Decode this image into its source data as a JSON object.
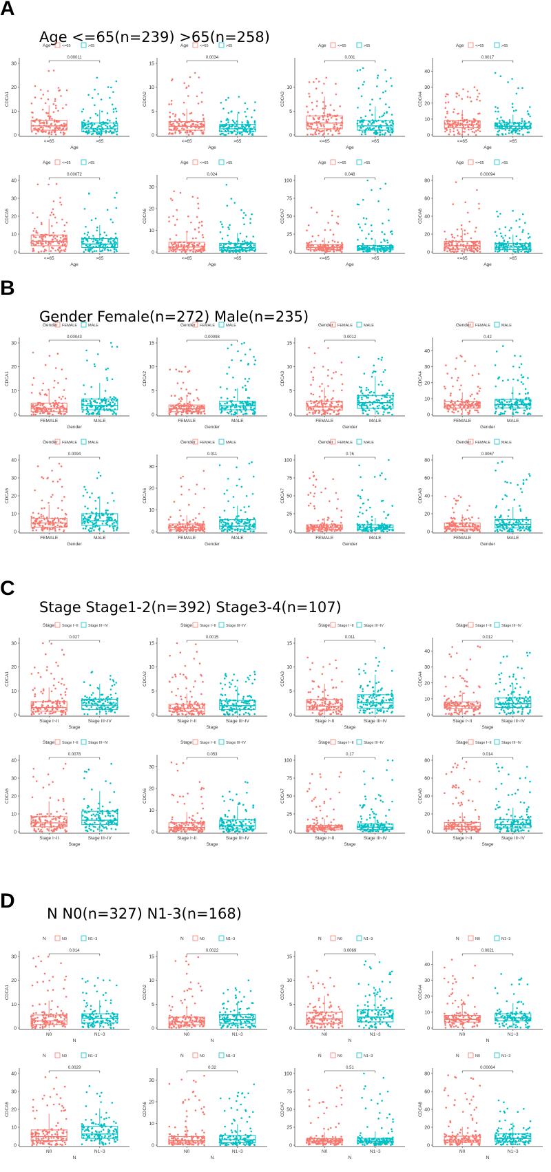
{
  "panels": [
    {
      "letter": "A",
      "title": "Age <=65(n=239)   >65(n=258)",
      "legend_title": "Age",
      "groups": [
        "<=65",
        ">65"
      ],
      "xlabel": "Age"
    },
    {
      "letter": "B",
      "title": "Gender Female(n=272)   Male(n=235)",
      "legend_title": "Gender",
      "groups": [
        "FEMALE",
        "MALE"
      ],
      "xlabel": "Gender"
    },
    {
      "letter": "C",
      "title": "Stage Stage1-2(n=392)   Stage3-4(n=107)",
      "legend_title": "Stage",
      "groups": [
        "Stage I~II",
        "Stage III~IV"
      ],
      "xlabel": "Stage"
    },
    {
      "letter": "D",
      "title": "N N0(n=327)   N1-3(n=168)",
      "legend_title": "N",
      "groups": [
        "N0",
        "N1~3"
      ],
      "xlabel": "N"
    }
  ],
  "colors": {
    "group1": "#F8766D",
    "group2": "#00BFC4"
  },
  "chart_data": [
    {
      "type": "boxplot",
      "panel": "A",
      "gene": "CDCA1",
      "p": "0.00011",
      "ylim": [
        0,
        30
      ],
      "yticks": [
        0,
        10,
        20,
        30
      ],
      "medians": [
        3.8,
        2.6
      ],
      "q1": [
        2.0,
        1.3
      ],
      "q3": [
        6.2,
        5.0
      ],
      "max": [
        27,
        24
      ]
    },
    {
      "type": "boxplot",
      "panel": "A",
      "gene": "CDCA2",
      "p": "0.0034",
      "ylim": [
        0,
        15
      ],
      "yticks": [
        0,
        5,
        10,
        15
      ],
      "medians": [
        1.8,
        1.3
      ],
      "q1": [
        1.0,
        0.7
      ],
      "q3": [
        2.8,
        2.2
      ],
      "max": [
        13,
        8
      ]
    },
    {
      "type": "boxplot",
      "panel": "A",
      "gene": "CDCA3",
      "p": "0.001",
      "ylim": [
        0,
        15
      ],
      "yticks": [
        0,
        5,
        10
      ],
      "medians": [
        2.5,
        1.9
      ],
      "q1": [
        1.3,
        1.0
      ],
      "q3": [
        4.0,
        3.0
      ],
      "max": [
        12,
        14
      ]
    },
    {
      "type": "boxplot",
      "panel": "A",
      "gene": "CDCA4",
      "p": "0.0017",
      "ylim": [
        0,
        45
      ],
      "yticks": [
        0,
        10,
        20,
        30,
        40
      ],
      "medians": [
        6.5,
        5.5
      ],
      "q1": [
        4.5,
        4.0
      ],
      "q3": [
        9.0,
        7.5
      ],
      "max": [
        30,
        39
      ]
    },
    {
      "type": "boxplot",
      "panel": "A",
      "gene": "CDCA5",
      "p": "0.00072",
      "ylim": [
        0,
        40
      ],
      "yticks": [
        0,
        10,
        20,
        30,
        40
      ],
      "medians": [
        6.0,
        4.5
      ],
      "q1": [
        3.5,
        2.5
      ],
      "q3": [
        9.5,
        7.5
      ],
      "max": [
        38,
        33
      ]
    },
    {
      "type": "boxplot",
      "panel": "A",
      "gene": "CDCA6",
      "p": "0.024",
      "ylim": [
        0,
        33
      ],
      "yticks": [
        0,
        10,
        20,
        30
      ],
      "medians": [
        2.3,
        2.0
      ],
      "q1": [
        1.0,
        0.8
      ],
      "q3": [
        4.5,
        4.0
      ],
      "max": [
        28,
        31
      ]
    },
    {
      "type": "boxplot",
      "panel": "A",
      "gene": "CDCA7",
      "p": "0.048",
      "ylim": [
        0,
        100
      ],
      "yticks": [
        0,
        25,
        50,
        75,
        100
      ],
      "medians": [
        6.5,
        5.0
      ],
      "q1": [
        3.5,
        3.0
      ],
      "q3": [
        10.0,
        9.0
      ],
      "max": [
        62,
        100
      ]
    },
    {
      "type": "boxplot",
      "panel": "A",
      "gene": "CDCA8",
      "p": "0.00094",
      "ylim": [
        0,
        80
      ],
      "yticks": [
        0,
        20,
        40,
        60,
        80
      ],
      "medians": [
        7.0,
        5.5
      ],
      "q1": [
        3.5,
        2.8
      ],
      "q3": [
        12.0,
        9.5
      ],
      "max": [
        78,
        46
      ]
    },
    {
      "type": "boxplot",
      "panel": "B",
      "gene": "CDCA1",
      "p": "0.00043",
      "ylim": [
        0,
        30
      ],
      "yticks": [
        0,
        10,
        20,
        30
      ],
      "medians": [
        2.6,
        3.8
      ],
      "q1": [
        1.2,
        2.0
      ],
      "q3": [
        4.8,
        6.5
      ],
      "max": [
        26,
        30
      ]
    },
    {
      "type": "boxplot",
      "panel": "B",
      "gene": "CDCA2",
      "p": "0.00098",
      "ylim": [
        0,
        15
      ],
      "yticks": [
        0,
        5,
        10,
        15
      ],
      "medians": [
        1.2,
        1.8
      ],
      "q1": [
        0.6,
        1.0
      ],
      "q3": [
        2.0,
        2.8
      ],
      "max": [
        10,
        15
      ]
    },
    {
      "type": "boxplot",
      "panel": "B",
      "gene": "CDCA3",
      "p": "0.0012",
      "ylim": [
        0,
        15
      ],
      "yticks": [
        0,
        5,
        10,
        15
      ],
      "medians": [
        1.6,
        2.5
      ],
      "q1": [
        0.9,
        1.3
      ],
      "q3": [
        2.8,
        4.0
      ],
      "max": [
        14,
        12
      ]
    },
    {
      "type": "boxplot",
      "panel": "B",
      "gene": "CDCA4",
      "p": "0.42",
      "ylim": [
        0,
        45
      ],
      "yticks": [
        0,
        10,
        20,
        30,
        40
      ],
      "medians": [
        6.0,
        6.2
      ],
      "q1": [
        4.0,
        4.2
      ],
      "q3": [
        8.0,
        9.5
      ],
      "max": [
        37,
        43
      ]
    },
    {
      "type": "boxplot",
      "panel": "B",
      "gene": "CDCA5",
      "p": "0.0094",
      "ylim": [
        0,
        40
      ],
      "yticks": [
        0,
        10,
        20,
        30,
        40
      ],
      "medians": [
        4.8,
        6.0
      ],
      "q1": [
        2.5,
        3.5
      ],
      "q3": [
        7.5,
        10.0
      ],
      "max": [
        38,
        33
      ]
    },
    {
      "type": "boxplot",
      "panel": "B",
      "gene": "CDCA6",
      "p": "0.011",
      "ylim": [
        0,
        33
      ],
      "yticks": [
        0,
        10,
        20,
        30
      ],
      "medians": [
        1.8,
        2.5
      ],
      "q1": [
        0.8,
        1.2
      ],
      "q3": [
        3.5,
        5.5
      ],
      "max": [
        28,
        32
      ]
    },
    {
      "type": "boxplot",
      "panel": "B",
      "gene": "CDCA7",
      "p": "0.76",
      "ylim": [
        0,
        100
      ],
      "yticks": [
        0,
        25,
        50,
        75,
        100
      ],
      "medians": [
        5.5,
        5.5
      ],
      "q1": [
        3.0,
        3.0
      ],
      "q3": [
        9.5,
        9.5
      ],
      "max": [
        83,
        100
      ]
    },
    {
      "type": "boxplot",
      "panel": "B",
      "gene": "CDCA8",
      "p": "0.0067",
      "ylim": [
        0,
        80
      ],
      "yticks": [
        0,
        20,
        40,
        60,
        80
      ],
      "medians": [
        5.5,
        8.0
      ],
      "q1": [
        3.0,
        4.0
      ],
      "q3": [
        9.5,
        13.5
      ],
      "max": [
        40,
        78
      ]
    },
    {
      "type": "boxplot",
      "panel": "C",
      "gene": "CDCA1",
      "p": "0.027",
      "ylim": [
        0,
        30
      ],
      "yticks": [
        0,
        10,
        20,
        30
      ],
      "medians": [
        3.0,
        4.0
      ],
      "q1": [
        1.5,
        2.2
      ],
      "q3": [
        5.5,
        6.5
      ],
      "max": [
        30,
        18
      ]
    },
    {
      "type": "boxplot",
      "panel": "C",
      "gene": "CDCA2",
      "p": "0.0015",
      "ylim": [
        0,
        15
      ],
      "yticks": [
        0,
        5,
        10,
        15
      ],
      "medians": [
        1.3,
        1.9
      ],
      "q1": [
        0.7,
        1.1
      ],
      "q3": [
        2.2,
        3.0
      ],
      "max": [
        15,
        9
      ]
    },
    {
      "type": "boxplot",
      "panel": "C",
      "gene": "CDCA3",
      "p": "0.011",
      "ylim": [
        0,
        15
      ],
      "yticks": [
        0,
        5,
        10,
        15
      ],
      "medians": [
        1.8,
        2.5
      ],
      "q1": [
        1.0,
        1.4
      ],
      "q3": [
        3.2,
        4.2
      ],
      "max": [
        12,
        14
      ]
    },
    {
      "type": "boxplot",
      "panel": "C",
      "gene": "CDCA4",
      "p": "0.012",
      "ylim": [
        0,
        45
      ],
      "yticks": [
        0,
        10,
        20,
        30,
        40
      ],
      "medians": [
        5.5,
        7.0
      ],
      "q1": [
        4.0,
        4.5
      ],
      "q3": [
        8.0,
        10.5
      ],
      "max": [
        43,
        39
      ]
    },
    {
      "type": "boxplot",
      "panel": "C",
      "gene": "CDCA5",
      "p": "0.0078",
      "ylim": [
        0,
        40
      ],
      "yticks": [
        0,
        10,
        20,
        30,
        40
      ],
      "medians": [
        5.0,
        6.5
      ],
      "q1": [
        2.8,
        4.0
      ],
      "q3": [
        8.5,
        11.5
      ],
      "max": [
        38,
        38
      ]
    },
    {
      "type": "boxplot",
      "panel": "C",
      "gene": "CDCA6",
      "p": "0.053",
      "ylim": [
        0,
        33
      ],
      "yticks": [
        0,
        10,
        20,
        30
      ],
      "medians": [
        2.0,
        2.8
      ],
      "q1": [
        0.9,
        1.3
      ],
      "q3": [
        4.2,
        5.5
      ],
      "max": [
        32,
        23
      ]
    },
    {
      "type": "boxplot",
      "panel": "C",
      "gene": "CDCA7",
      "p": "0.17",
      "ylim": [
        0,
        100
      ],
      "yticks": [
        0,
        25,
        50,
        75,
        100
      ],
      "medians": [
        5.5,
        6.5
      ],
      "q1": [
        3.0,
        3.5
      ],
      "q3": [
        9.0,
        11.0
      ],
      "max": [
        83,
        100
      ]
    },
    {
      "type": "boxplot",
      "panel": "C",
      "gene": "CDCA8",
      "p": "0.014",
      "ylim": [
        0,
        80
      ],
      "yticks": [
        0,
        20,
        40,
        60,
        80
      ],
      "medians": [
        6.0,
        8.0
      ],
      "q1": [
        3.0,
        4.5
      ],
      "q3": [
        10.5,
        13.5
      ],
      "max": [
        78,
        76
      ]
    },
    {
      "type": "boxplot",
      "panel": "D",
      "gene": "CDCA1",
      "p": "0.014",
      "ylim": [
        0,
        30
      ],
      "yticks": [
        0,
        10,
        20,
        30
      ],
      "medians": [
        3.0,
        4.0
      ],
      "q1": [
        1.5,
        2.2
      ],
      "q3": [
        5.5,
        6.0
      ],
      "max": [
        30,
        21
      ]
    },
    {
      "type": "boxplot",
      "panel": "D",
      "gene": "CDCA2",
      "p": "0.0022",
      "ylim": [
        0,
        15
      ],
      "yticks": [
        0,
        5,
        10,
        15
      ],
      "medians": [
        1.3,
        1.8
      ],
      "q1": [
        0.7,
        1.0
      ],
      "q3": [
        2.3,
        2.8
      ],
      "max": [
        15,
        10
      ]
    },
    {
      "type": "boxplot",
      "panel": "D",
      "gene": "CDCA3",
      "p": "0.0069",
      "ylim": [
        0,
        15
      ],
      "yticks": [
        0,
        5,
        10,
        15
      ],
      "medians": [
        1.9,
        2.3
      ],
      "q1": [
        1.0,
        1.3
      ],
      "q3": [
        3.3,
        3.8
      ],
      "max": [
        12,
        14
      ]
    },
    {
      "type": "boxplot",
      "panel": "D",
      "gene": "CDCA4",
      "p": "0.0021",
      "ylim": [
        0,
        45
      ],
      "yticks": [
        0,
        10,
        20,
        30,
        40
      ],
      "medians": [
        5.5,
        6.5
      ],
      "q1": [
        3.8,
        4.5
      ],
      "q3": [
        8.0,
        9.0
      ],
      "max": [
        43,
        34
      ]
    },
    {
      "type": "boxplot",
      "panel": "D",
      "gene": "CDCA5",
      "p": "0.0029",
      "ylim": [
        0,
        40
      ],
      "yticks": [
        0,
        10,
        20,
        30,
        40
      ],
      "medians": [
        4.8,
        6.2
      ],
      "q1": [
        2.5,
        3.8
      ],
      "q3": [
        8.5,
        10.5
      ],
      "max": [
        38,
        33
      ]
    },
    {
      "type": "boxplot",
      "panel": "D",
      "gene": "CDCA6",
      "p": "0.32",
      "ylim": [
        0,
        33
      ],
      "yticks": [
        0,
        10,
        20,
        30
      ],
      "medians": [
        2.0,
        2.5
      ],
      "q1": [
        1.0,
        1.1
      ],
      "q3": [
        4.0,
        4.5
      ],
      "max": [
        32,
        28
      ]
    },
    {
      "type": "boxplot",
      "panel": "D",
      "gene": "CDCA7",
      "p": "0.51",
      "ylim": [
        0,
        100
      ],
      "yticks": [
        0,
        25,
        50,
        75,
        100
      ],
      "medians": [
        5.5,
        5.5
      ],
      "q1": [
        3.0,
        3.0
      ],
      "q3": [
        9.0,
        9.5
      ],
      "max": [
        83,
        100
      ]
    },
    {
      "type": "boxplot",
      "panel": "D",
      "gene": "CDCA8",
      "p": "0.00064",
      "ylim": [
        0,
        80
      ],
      "yticks": [
        0,
        20,
        40,
        60,
        80
      ],
      "medians": [
        5.5,
        7.5
      ],
      "q1": [
        3.0,
        4.0
      ],
      "q3": [
        10.0,
        12.5
      ],
      "max": [
        78,
        50
      ]
    }
  ]
}
